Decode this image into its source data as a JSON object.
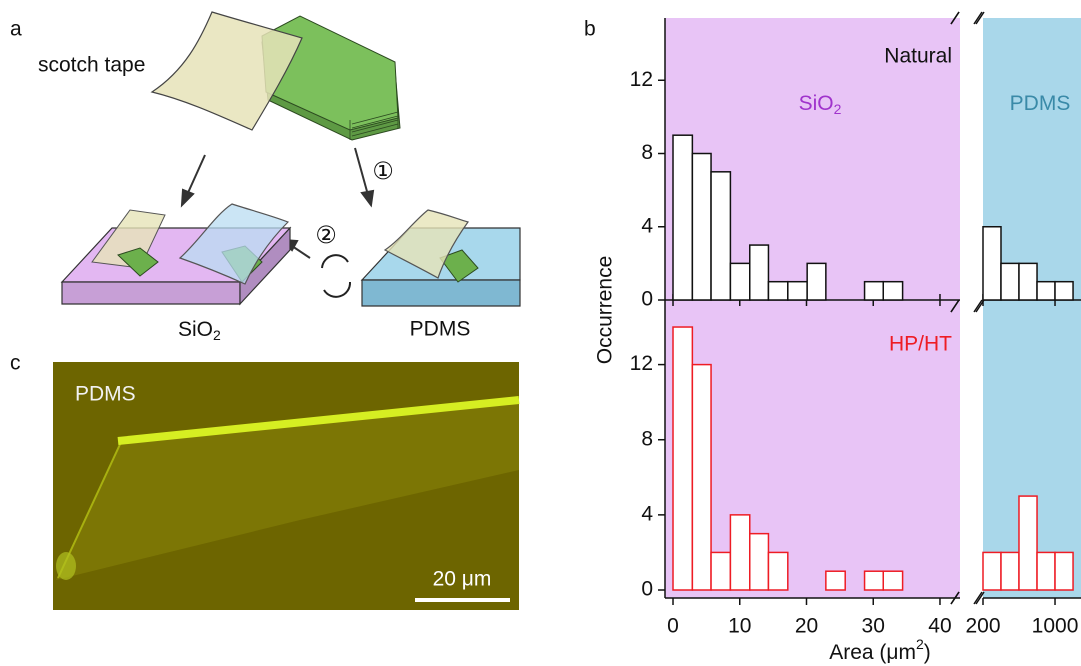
{
  "panel_labels": [
    "a",
    "b",
    "c"
  ],
  "diagram": {
    "tape_label": "scotch tape",
    "step1": "①",
    "step2": "②",
    "substrate1": "SiO",
    "substrate1_sub": "2",
    "substrate2": "PDMS"
  },
  "micrograph": {
    "label": "PDMS",
    "scale_bar": "20 μm"
  },
  "y_label": "Occurrence",
  "x_axis": {
    "label": "Area (μm",
    "label_sup": "2",
    "label_end": ")",
    "segments": [
      {
        "xlim": [
          -1.2,
          43
        ],
        "xticks": [
          0,
          10,
          20,
          30,
          40
        ],
        "background": "#e8c4f6",
        "name": "SiO",
        "name_sub": "2",
        "name_color": "#a033cc"
      },
      {
        "xlim": [
          200,
          1787
        ],
        "xticks": [
          200,
          1000
        ],
        "log": true,
        "background": "#a9d7ea",
        "name": "PDMS",
        "name_color": "#3a8aa8"
      }
    ]
  },
  "chart_data": [
    {
      "type": "histogram",
      "annotation": "Natural",
      "annotation_color": "#111111",
      "edge_color": "#111111",
      "ylim": [
        0,
        15.4
      ],
      "yticks": [
        0,
        4,
        8,
        12
      ],
      "series": [
        {
          "bins": [
            0,
            2.9,
            5.7,
            8.6,
            11.5,
            14.3,
            17.2,
            20.1,
            22.9,
            25.8,
            28.7,
            31.5,
            34.4,
            37.3,
            40.1,
            43
          ],
          "values": [
            9,
            8,
            7,
            2,
            3,
            1,
            1,
            2,
            0,
            0,
            1,
            1,
            0,
            0,
            0
          ]
        },
        {
          "bins": [
            200,
            299,
            447,
            669,
            1000,
            1496
          ],
          "values": [
            4,
            2,
            2,
            1,
            1
          ]
        }
      ]
    },
    {
      "type": "histogram",
      "annotation": "HP/HT",
      "annotation_color": "#ee1c24",
      "edge_color": "#ee1c24",
      "ylim": [
        0,
        14.8
      ],
      "yticks": [
        0,
        4,
        8,
        12
      ],
      "series": [
        {
          "bins": [
            0,
            2.9,
            5.7,
            8.6,
            11.5,
            14.3,
            17.2,
            20.1,
            22.9,
            25.8,
            28.7,
            31.5,
            34.4,
            37.3,
            40.1,
            43
          ],
          "values": [
            14,
            12,
            2,
            4,
            3,
            2,
            0,
            0,
            1,
            0,
            1,
            1,
            0,
            0,
            0
          ]
        },
        {
          "bins": [
            200,
            299,
            447,
            669,
            1000,
            1496
          ],
          "values": [
            2,
            2,
            5,
            2,
            2
          ]
        }
      ]
    }
  ]
}
